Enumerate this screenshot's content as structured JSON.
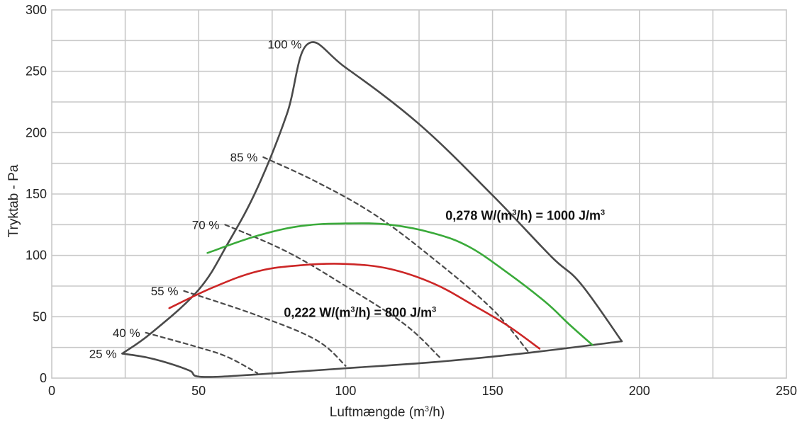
{
  "chart_data": {
    "type": "line",
    "xlabel": "Luftmængde (m³/h)",
    "xlabel_main": "Luftmængde (m",
    "xlabel_sup": "3",
    "xlabel_tail": "/h)",
    "ylabel": "Tryktab - Pa",
    "xlim": [
      0,
      250
    ],
    "ylim": [
      0,
      300
    ],
    "xticks": [
      "0",
      "50",
      "100",
      "150",
      "200",
      "250"
    ],
    "yticks": [
      "0",
      "50",
      "100",
      "150",
      "200",
      "250",
      "300"
    ],
    "xtick_values": [
      0,
      50,
      100,
      150,
      200,
      250
    ],
    "ytick_values": [
      0,
      50,
      100,
      150,
      200,
      250,
      300
    ],
    "grid": true,
    "series": [
      {
        "label": "100 %",
        "style": "solid",
        "color": "#4a4a4a",
        "points": [
          [
            24,
            20
          ],
          [
            34,
            37
          ],
          [
            50,
            72
          ],
          [
            60,
            110
          ],
          [
            70,
            155
          ],
          [
            80,
            215
          ],
          [
            87,
            272
          ],
          [
            100,
            253
          ],
          [
            125,
            207
          ],
          [
            150,
            149
          ],
          [
            170,
            99
          ],
          [
            180,
            77
          ],
          [
            194,
            30
          ]
        ]
      },
      {
        "label": "",
        "style": "solid",
        "color": "#4a4a4a",
        "points": [
          [
            24,
            20
          ],
          [
            32,
            17
          ],
          [
            40,
            12
          ],
          [
            47,
            6
          ],
          [
            51,
            1
          ],
          [
            70,
            3
          ],
          [
            100,
            8
          ],
          [
            130,
            13
          ],
          [
            160,
            20
          ],
          [
            194,
            30
          ]
        ]
      },
      {
        "label": "85 %",
        "style": "dashed",
        "color": "#4a4a4a",
        "points": [
          [
            72,
            180
          ],
          [
            90,
            160
          ],
          [
            110,
            133
          ],
          [
            130,
            97
          ],
          [
            150,
            56
          ],
          [
            162,
            22
          ]
        ]
      },
      {
        "label": "70 %",
        "style": "dashed",
        "color": "#4a4a4a",
        "points": [
          [
            59,
            125
          ],
          [
            80,
            103
          ],
          [
            100,
            75
          ],
          [
            120,
            44
          ],
          [
            132,
            17
          ]
        ]
      },
      {
        "label": "55 %",
        "style": "dashed",
        "color": "#4a4a4a",
        "points": [
          [
            45,
            71
          ],
          [
            70,
            51
          ],
          [
            90,
            31
          ],
          [
            100,
            10
          ]
        ]
      },
      {
        "label": "40 %",
        "style": "dashed",
        "color": "#4a4a4a",
        "points": [
          [
            32,
            37
          ],
          [
            50,
            25
          ],
          [
            60,
            17
          ],
          [
            70,
            4
          ]
        ]
      },
      {
        "label": "25 %",
        "style": "marker",
        "color": "#4a4a4a",
        "points": [
          [
            24,
            20
          ]
        ]
      },
      {
        "label": "0,278 W/(m³/h) = 1000 J/m³",
        "style": "solid",
        "color": "#3aaa3a",
        "points": [
          [
            53,
            102
          ],
          [
            70,
            116
          ],
          [
            85,
            124
          ],
          [
            100,
            126
          ],
          [
            115,
            125
          ],
          [
            130,
            118
          ],
          [
            142,
            107
          ],
          [
            155,
            86
          ],
          [
            168,
            62
          ],
          [
            176,
            44
          ],
          [
            184,
            27
          ]
        ]
      },
      {
        "label": "0,222 W/(m³/h) = 800 J/m³",
        "style": "solid",
        "color": "#cc2626",
        "points": [
          [
            40,
            57
          ],
          [
            55,
            74
          ],
          [
            70,
            87
          ],
          [
            85,
            92
          ],
          [
            100,
            93
          ],
          [
            115,
            89
          ],
          [
            130,
            77
          ],
          [
            143,
            60
          ],
          [
            155,
            43
          ],
          [
            166,
            24
          ]
        ]
      }
    ],
    "curve_labels": [
      {
        "text": "100 %",
        "x": 87,
        "y": 272
      },
      {
        "text": "85 %",
        "x": 72,
        "y": 180
      },
      {
        "text": "70 %",
        "x": 59,
        "y": 125
      },
      {
        "text": "55 %",
        "x": 45,
        "y": 71
      },
      {
        "text": "40 %",
        "x": 32,
        "y": 37
      },
      {
        "text": "25 %",
        "x": 24,
        "y": 20
      }
    ],
    "annotations": [
      {
        "text": "0,278 W/(m³/h) = 1000 J/m³",
        "parts": [
          "0,278 W/(m",
          "3",
          "/h) = 1000 J/m",
          "3"
        ],
        "x": 134,
        "y": 129
      },
      {
        "text": "0,222 W/(m³/h) = 800 J/m³",
        "parts": [
          "0,222 W/(m",
          "3",
          "/h) = 800 J/m",
          "3"
        ],
        "x": 79,
        "y": 50
      }
    ]
  }
}
